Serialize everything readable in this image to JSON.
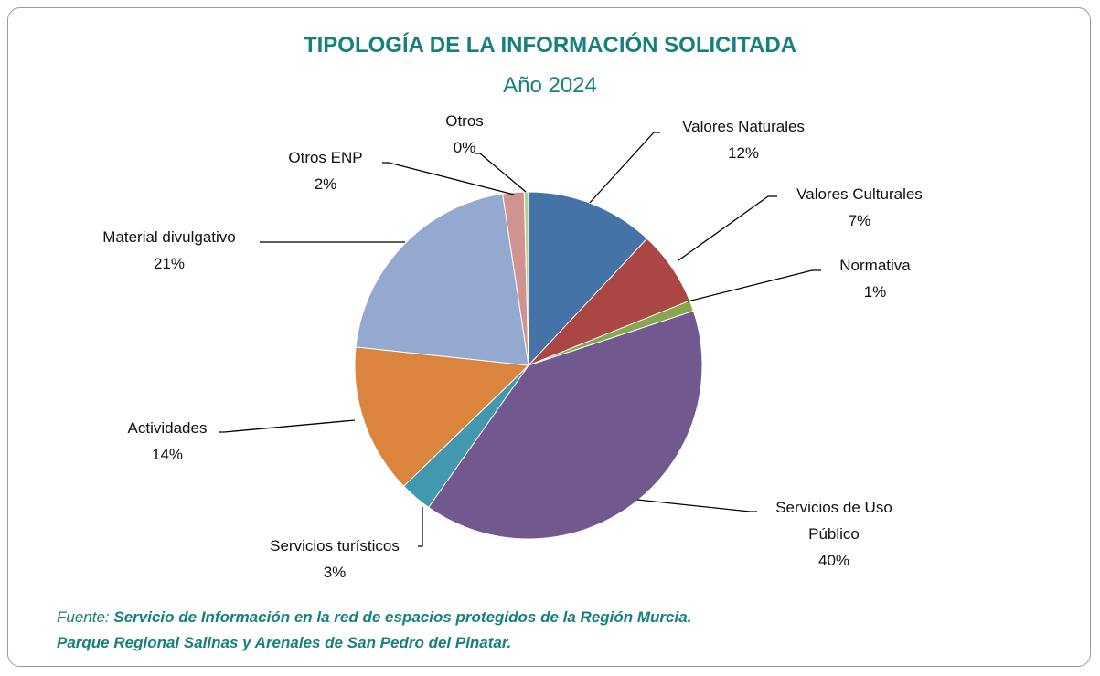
{
  "chart_data": {
    "type": "pie",
    "title": "TIPOLOGÍA DE LA INFORMACIÓN SOLICITADA",
    "subtitle": "Año 2024",
    "categories": [
      "Valores Naturales",
      "Valores Culturales",
      "Normativa",
      "Servicios de Uso Público",
      "Servicios turísticos",
      "Actividades",
      "Material divulgativo",
      "Otros ENP",
      "Otros"
    ],
    "values": [
      12,
      7,
      1,
      40,
      3,
      14,
      21,
      2,
      0.4
    ],
    "value_labels": [
      "12%",
      "7%",
      "1%",
      "40%",
      "3%",
      "14%",
      "21%",
      "2%",
      "0%"
    ],
    "colors": [
      "#4572a7",
      "#aa4643",
      "#89a54e",
      "#71588f",
      "#4198af",
      "#db843d",
      "#93a9cf",
      "#d19392",
      "#b9cd96"
    ]
  },
  "footer": {
    "source_label": "Fuente:",
    "lines": [
      "Servicio de Información en la red de espacios protegidos de la Región Murcia.",
      "Parque Regional Salinas y Arenales de San Pedro del Pinatar."
    ]
  }
}
